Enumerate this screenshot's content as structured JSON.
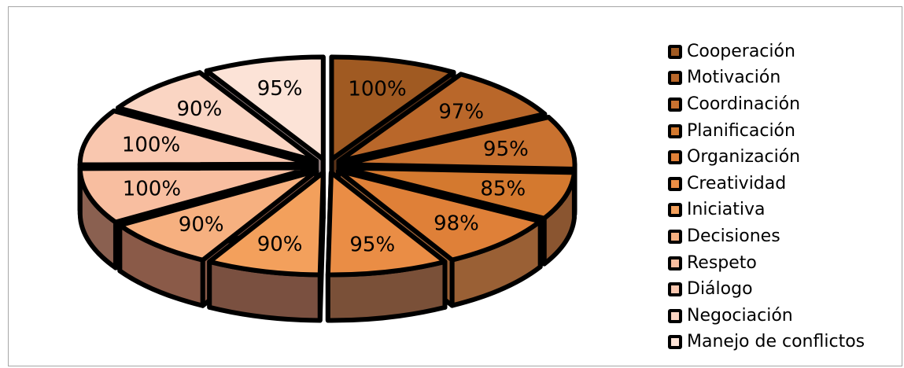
{
  "chart_data": {
    "type": "pie",
    "title": "",
    "style": "exploded 3D pie",
    "categories": [
      "Cooperación",
      "Motivación",
      "Coordinación",
      "Planificación",
      "Organización",
      "Creatividad",
      "Iniciativa",
      "Decisiones",
      "Respeto",
      "Diálogo",
      "Negociación",
      "Manejo de conflictos"
    ],
    "values": [
      100,
      97,
      95,
      85,
      98,
      95,
      90,
      90,
      100,
      100,
      90,
      95
    ],
    "labels": [
      "100%",
      "97%",
      "95%",
      "85%",
      "98%",
      "95%",
      "90%",
      "90%",
      "100%",
      "100%",
      "90%",
      "95%"
    ],
    "colors": [
      "#a05a22",
      "#b9672a",
      "#c97230",
      "#d4792f",
      "#df8038",
      "#ea8d45",
      "#f3a05c",
      "#f6b080",
      "#f8bea0",
      "#f9c7af",
      "#fad5c3",
      "#fce3d7"
    ],
    "side_colors": [
      "#5a3319",
      "#6a3d1f",
      "#7a4a27",
      "#8a5530",
      "#9a6035",
      "#7a5038",
      "#7a5040",
      "#8a5a48",
      "#8a6050",
      "#8a6858",
      "#8a7068",
      "#8a7878"
    ],
    "legend_position": "right"
  }
}
